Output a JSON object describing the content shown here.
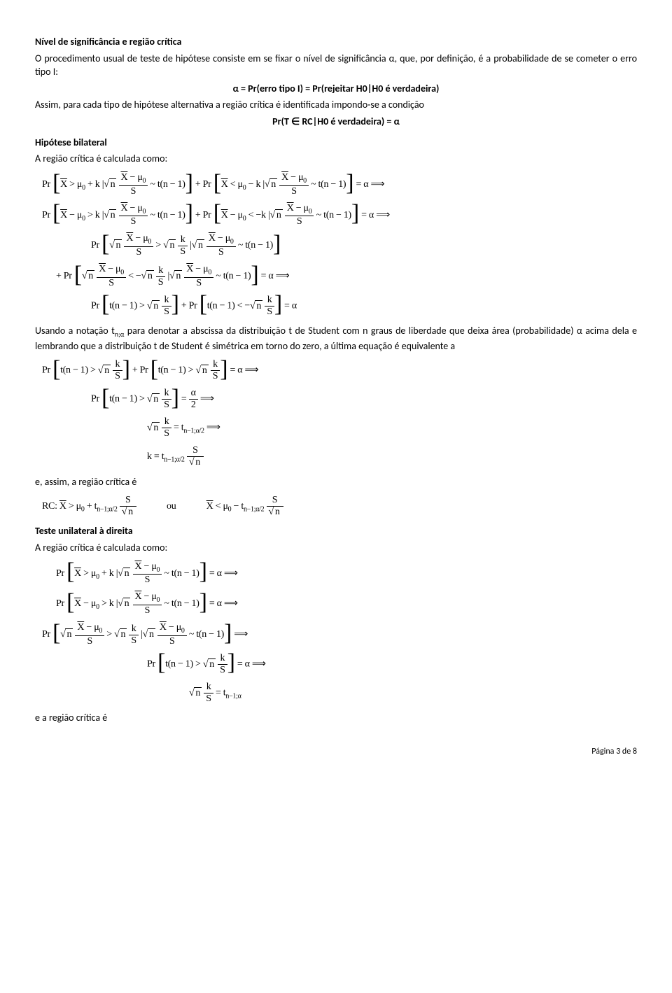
{
  "title": "Nível de significância e região crítica",
  "p1": "O procedimento usual de teste de hipótese consiste em se fixar o nível de significância α, que, por definição, é a probabilidade de se cometer o erro tipo I:",
  "eq_alpha": "α = Pr(erro tipo I) = Pr(rejeitar H0|H0 é verdadeira)",
  "p2": "Assim, para cada tipo de hipótese alternativa a região crítica é identificada impondo-se a condição",
  "eq_pr_rc": "Pr(T ∈ RC|H0 é verdadeira) = α",
  "h_bilateral": "Hipótese bilateral",
  "p3": "A região crítica é calculada como:",
  "p_usando_pre": "Usando a notação t",
  "p_usando_sub": "n;α",
  "p_usando_post": " para denotar a abscissa da distribuição t de Student com n graus de liberdade que deixa área (probabilidade) α acima dela e lembrando que a distribuição t de Student é simétrica em torno do zero, a última equação é equivalente a",
  "p_eassim": "e, assim, a região crítica é",
  "ou": "ou",
  "h_unilateral": "Teste unilateral à direita",
  "p4": "A região crítica é calculada como:",
  "p_ea_regiao": "e a região crítica é",
  "footer": "Página 3 de 8"
}
